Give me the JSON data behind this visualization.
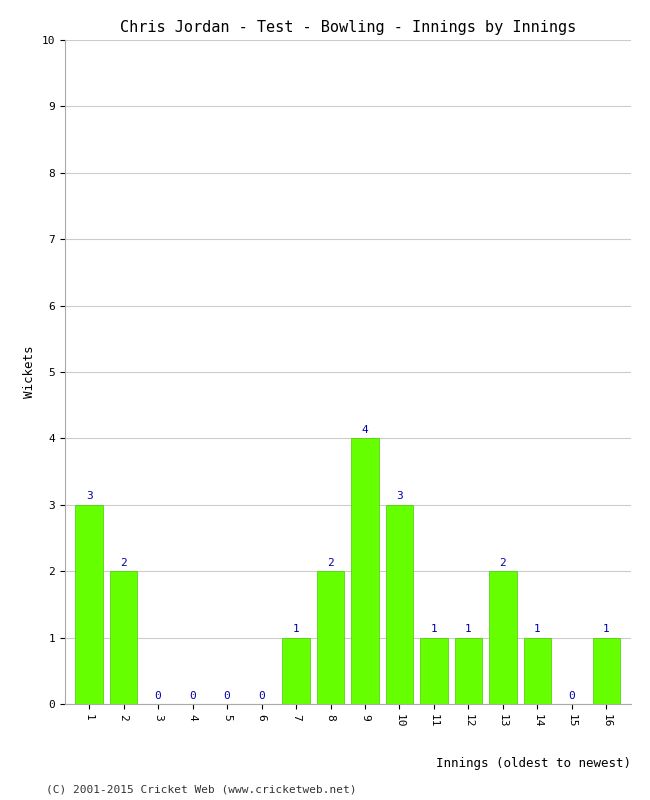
{
  "title": "Chris Jordan - Test - Bowling - Innings by Innings",
  "xlabel": "Innings (oldest to newest)",
  "ylabel": "Wickets",
  "innings": [
    1,
    2,
    3,
    4,
    5,
    6,
    7,
    8,
    9,
    10,
    11,
    12,
    13,
    14,
    15,
    16
  ],
  "wickets": [
    3,
    2,
    0,
    0,
    0,
    0,
    1,
    2,
    4,
    3,
    1,
    1,
    2,
    1,
    0,
    1
  ],
  "bar_color": "#66ff00",
  "bar_edge_color": "#44cc00",
  "label_color": "#0000aa",
  "background_color": "#ffffff",
  "grid_color": "#cccccc",
  "ylim": [
    0,
    10
  ],
  "yticks": [
    0,
    1,
    2,
    3,
    4,
    5,
    6,
    7,
    8,
    9,
    10
  ],
  "footer": "(C) 2001-2015 Cricket Web (www.cricketweb.net)",
  "title_fontsize": 11,
  "label_fontsize": 9,
  "tick_fontsize": 8,
  "annotation_fontsize": 8,
  "footer_fontsize": 8
}
